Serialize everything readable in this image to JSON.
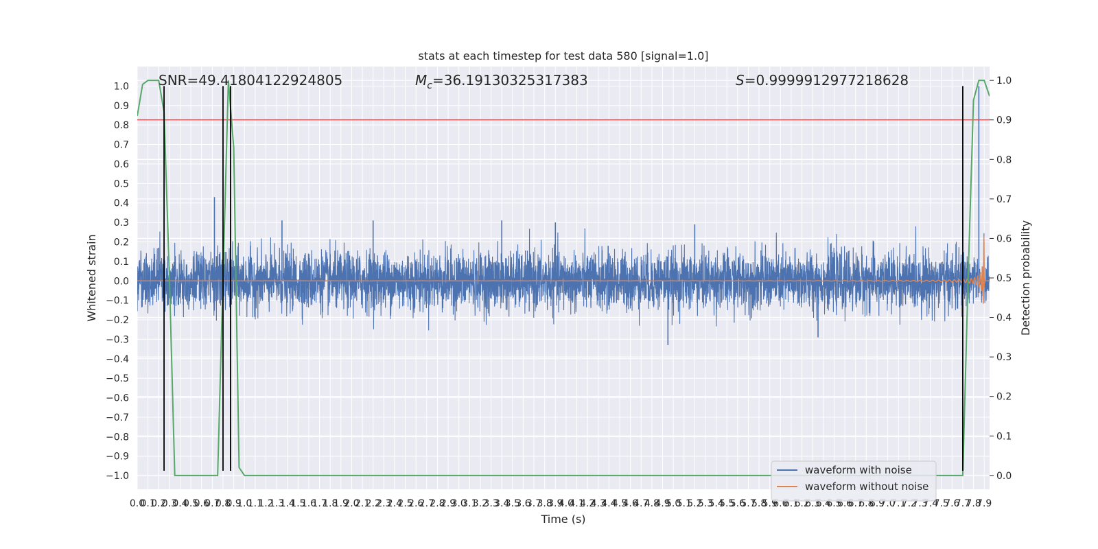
{
  "chart_data": {
    "type": "line",
    "title": "stats at each timestep for test data 580 [signal=1.0]",
    "xlabel": "Time (s)",
    "ylabel": "Whitened strain",
    "ylabel_right": "Detection probability",
    "xlim": [
      0.0,
      7.95
    ],
    "ylim": [
      -1.07,
      1.1
    ],
    "ylim_right": [
      -0.035,
      1.035
    ],
    "x_ticks": [
      0.0,
      0.1,
      0.2,
      0.3,
      0.4,
      0.5,
      0.6,
      0.7,
      0.8,
      0.9,
      1.0,
      1.1,
      1.2,
      1.3,
      1.4,
      1.5,
      1.6,
      1.7,
      1.8,
      1.9,
      2.0,
      2.1,
      2.2,
      2.3,
      2.4,
      2.5,
      2.6,
      2.7,
      2.8,
      2.9,
      3.0,
      3.1,
      3.2,
      3.3,
      3.4,
      3.5,
      3.6,
      3.7,
      3.8,
      3.9,
      4.0,
      4.1,
      4.2,
      4.3,
      4.4,
      4.5,
      4.6,
      4.7,
      4.8,
      4.9,
      5.0,
      5.1,
      5.2,
      5.3,
      5.4,
      5.5,
      5.6,
      5.7,
      5.8,
      5.9,
      6.0,
      6.1,
      6.2,
      6.3,
      6.4,
      6.5,
      6.6,
      6.7,
      6.8,
      6.9,
      7.0,
      7.1,
      7.2,
      7.3,
      7.4,
      7.5,
      7.6,
      7.7,
      7.8,
      7.9
    ],
    "x_tick_labels": [
      "0.0",
      "0.1",
      "0.2",
      "0.3",
      "0.4",
      "0.5",
      "0.6",
      "0.7",
      "0.8",
      "0.9",
      "1.0",
      "1.1",
      "1.2",
      "1.3",
      "1.4",
      "1.5",
      "1.6",
      "1.7",
      "1.8",
      "1.9",
      "2.0",
      "2.1",
      "2.2",
      "2.3",
      "2.4",
      "2.5",
      "2.6",
      "2.7",
      "2.8",
      "2.9",
      "3.0",
      "3.1",
      "3.2",
      "3.3",
      "3.4",
      "3.5",
      "3.6",
      "3.7",
      "3.8",
      "3.9",
      "4.0",
      "4.1",
      "4.2",
      "4.3",
      "4.4",
      "4.5",
      "4.6",
      "4.7",
      "4.8",
      "4.9",
      "5.0",
      "5.1",
      "5.2",
      "5.3",
      "5.4",
      "5.5",
      "5.6",
      "5.7",
      "5.8",
      "5.9",
      "6.0",
      "6.1",
      "6.2",
      "6.3",
      "6.4",
      "6.5",
      "6.6",
      "6.7",
      "6.8",
      "6.9",
      "7.0",
      "7.1",
      "7.2",
      "7.3",
      "7.4",
      "7.5",
      "7.6",
      "7.7",
      "7.8",
      "7.9"
    ],
    "y_ticks": [
      1.0,
      0.9,
      0.8,
      0.7,
      0.6,
      0.5,
      0.4,
      0.3,
      0.2,
      0.1,
      0.0,
      -0.1,
      -0.2,
      -0.3,
      -0.4,
      -0.5,
      -0.6,
      -0.7,
      -0.8,
      -0.9,
      -1.0
    ],
    "y_tick_labels": [
      "1.0",
      "0.9",
      "0.8",
      "0.7",
      "0.6",
      "0.5",
      "0.4",
      "0.3",
      "0.2",
      "0.1",
      "0.0",
      "−0.1",
      "−0.2",
      "−0.3",
      "−0.4",
      "−0.5",
      "−0.6",
      "−0.7",
      "−0.8",
      "−0.9",
      "−1.0"
    ],
    "y_ticks_right": [
      1.0,
      0.9,
      0.8,
      0.7,
      0.6,
      0.5,
      0.4,
      0.3,
      0.2,
      0.1,
      0.0
    ],
    "y_tick_labels_right": [
      "1.0",
      "0.9",
      "0.8",
      "0.7",
      "0.6",
      "0.5",
      "0.4",
      "0.3",
      "0.2",
      "0.1",
      "0.0"
    ],
    "grid": true,
    "legend_position": "bottom-right",
    "annotations": {
      "snr": "SNR=49.41804122924805",
      "mc_symbol": "M",
      "mc_sub": "c",
      "mc_value": "=36.19130325317383",
      "s_symbol": "S",
      "s_value": "=0.9999912977218628"
    },
    "series": [
      {
        "name": "waveform with noise",
        "axis": "left",
        "color": "#4c72b0",
        "kind": "noise",
        "envelope_sigma": 0.075,
        "peaks": [
          [
            0.2,
            0.17
          ],
          [
            0.72,
            0.43
          ],
          [
            1.35,
            0.31
          ],
          [
            2.2,
            0.31
          ],
          [
            3.4,
            0.31
          ],
          [
            3.9,
            0.3
          ],
          [
            4.95,
            -0.33
          ],
          [
            5.2,
            0.29
          ],
          [
            6.35,
            -0.29
          ],
          [
            7.85,
            1.0
          ]
        ]
      },
      {
        "name": "waveform without noise",
        "axis": "left",
        "color": "#dd8452",
        "kind": "chirp",
        "t_merge": 7.9,
        "max_amplitude": 0.97
      },
      {
        "axis": "right",
        "color": "#55a868",
        "kind": "probability",
        "x": [
          0.0,
          0.05,
          0.1,
          0.15,
          0.2,
          0.25,
          0.3,
          0.35,
          0.4,
          0.45,
          0.5,
          0.55,
          0.6,
          0.65,
          0.7,
          0.75,
          0.8,
          0.85,
          0.9,
          0.95,
          1.0,
          1.1,
          2.0,
          3.0,
          4.0,
          5.0,
          6.0,
          7.0,
          7.5,
          7.6,
          7.65,
          7.7,
          7.75,
          7.8,
          7.85,
          7.9,
          7.95
        ],
        "values": [
          0.91,
          0.99,
          1.0,
          1.0,
          1.0,
          0.92,
          0.5,
          0.0,
          0.0,
          0.0,
          0.0,
          0.0,
          0.0,
          0.0,
          0.0,
          0.0,
          0.5,
          1.0,
          0.83,
          0.02,
          0.0,
          0.0,
          0.0,
          0.0,
          0.0,
          0.0,
          0.0,
          0.0,
          0.0,
          0.0,
          0.0,
          0.0,
          0.5,
          0.95,
          1.0,
          1.0,
          0.96
        ]
      }
    ],
    "threshold": {
      "axis": "right",
      "value": 0.9,
      "color": "#c44e52"
    },
    "vertical_lines": {
      "x": [
        0.25,
        0.8,
        0.87,
        7.7
      ],
      "y_top": 1.0,
      "y_bottom": -0.975,
      "color": "#000000"
    }
  }
}
